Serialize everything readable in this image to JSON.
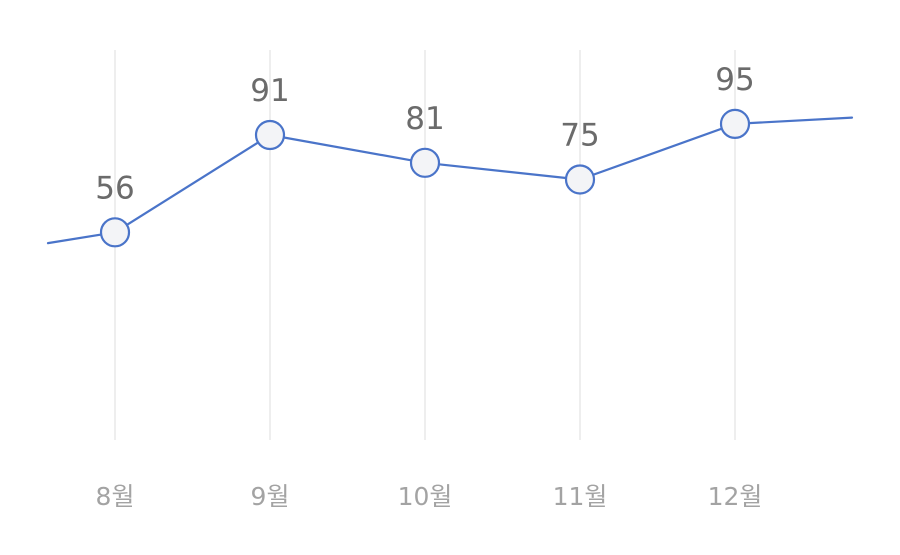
{
  "chart_data": {
    "type": "line",
    "categories": [
      "8월",
      "9월",
      "10월",
      "11월",
      "12월"
    ],
    "values": [
      56,
      91,
      81,
      75,
      95
    ],
    "data_labels": [
      "56",
      "91",
      "81",
      "75",
      "95"
    ],
    "trend_in": 47,
    "trend_out": 98,
    "ylim": [
      0,
      120
    ],
    "grid": "vertical",
    "title": "",
    "xlabel": "",
    "ylabel": "",
    "colors": {
      "line": "#4a74c9",
      "marker_fill": "#f3f4f7",
      "grid": "#e2e2e2",
      "data_label": "#6b6b6b",
      "tick_label": "#a3a3a3"
    }
  }
}
